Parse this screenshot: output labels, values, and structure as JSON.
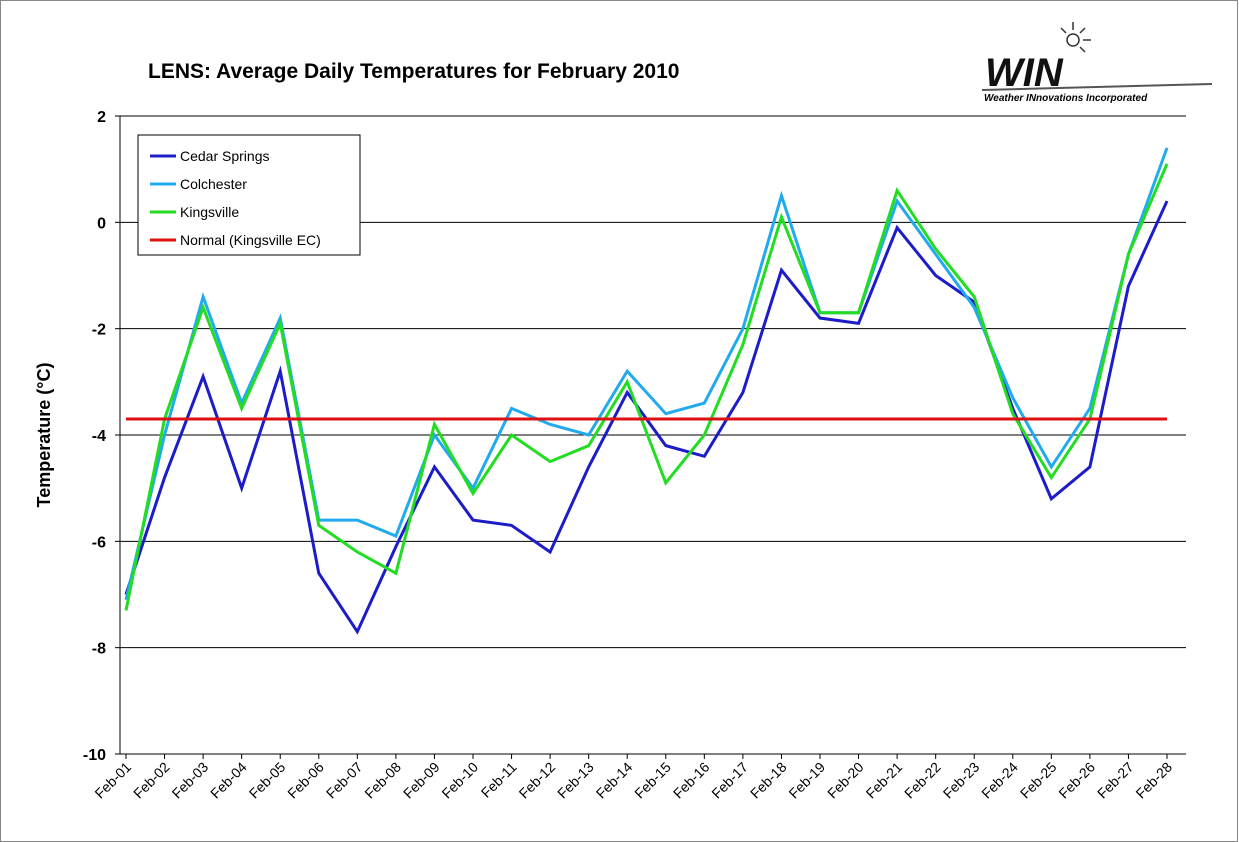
{
  "chart_data": {
    "type": "line",
    "title": "LENS: Average Daily Temperatures for February 2010",
    "logo": {
      "text": "WIN",
      "subtitle": "Weather INnovations Incorporated"
    },
    "y_label": "Temperature (°C)",
    "categories": [
      "Feb-01",
      "Feb-02",
      "Feb-03",
      "Feb-04",
      "Feb-05",
      "Feb-06",
      "Feb-07",
      "Feb-08",
      "Feb-09",
      "Feb-10",
      "Feb-11",
      "Feb-12",
      "Feb-13",
      "Feb-14",
      "Feb-15",
      "Feb-16",
      "Feb-17",
      "Feb-18",
      "Feb-19",
      "Feb-20",
      "Feb-21",
      "Feb-22",
      "Feb-23",
      "Feb-24",
      "Feb-25",
      "Feb-26",
      "Feb-27",
      "Feb-28"
    ],
    "series": [
      {
        "name": "Cedar Springs",
        "color": "#1c1cc8",
        "values": [
          -7.0,
          -4.8,
          -2.9,
          -5.0,
          -2.8,
          -6.6,
          -7.7,
          -6.1,
          -4.6,
          -5.6,
          -5.7,
          -6.2,
          -4.6,
          -3.2,
          -4.2,
          -4.4,
          -3.2,
          -0.9,
          -1.8,
          -1.9,
          -0.1,
          -1.0,
          -1.5,
          -3.5,
          -5.2,
          -4.6,
          -1.2,
          0.4
        ]
      },
      {
        "name": "Colchester",
        "color": "#22aaee",
        "values": [
          -7.1,
          -4.0,
          -1.4,
          -3.4,
          -1.8,
          -5.6,
          -5.6,
          -5.9,
          -4.0,
          -5.0,
          -3.5,
          -3.8,
          -4.0,
          -2.8,
          -3.6,
          -3.4,
          -2.0,
          0.5,
          -1.7,
          -1.7,
          0.4,
          -0.6,
          -1.6,
          -3.3,
          -4.6,
          -3.5,
          -0.6,
          1.4
        ]
      },
      {
        "name": "Kingsville",
        "color": "#22dd22",
        "values": [
          -7.3,
          -3.7,
          -1.6,
          -3.5,
          -1.9,
          -5.7,
          -6.2,
          -6.6,
          -3.8,
          -5.1,
          -4.0,
          -4.5,
          -4.2,
          -3.0,
          -4.9,
          -4.0,
          -2.3,
          0.1,
          -1.7,
          -1.7,
          0.6,
          -0.5,
          -1.4,
          -3.6,
          -4.8,
          -3.7,
          -0.6,
          1.1
        ]
      },
      {
        "name": "Normal (Kingsville EC)",
        "color": "#dd1111",
        "values": [
          -3.7,
          -3.7,
          -3.7,
          -3.7,
          -3.7,
          -3.7,
          -3.7,
          -3.7,
          -3.7,
          -3.7,
          -3.7,
          -3.7,
          -3.7,
          -3.7,
          -3.7,
          -3.7,
          -3.7,
          -3.7,
          -3.7,
          -3.7,
          -3.7,
          -3.7,
          -3.7,
          -3.7,
          -3.7,
          -3.7,
          -3.7,
          -3.7
        ]
      }
    ],
    "ylim": [
      -10,
      2
    ],
    "yticks": [
      -10,
      -8,
      -6,
      -4,
      -2,
      0,
      2
    ],
    "grid": true,
    "legend": "upper left"
  }
}
